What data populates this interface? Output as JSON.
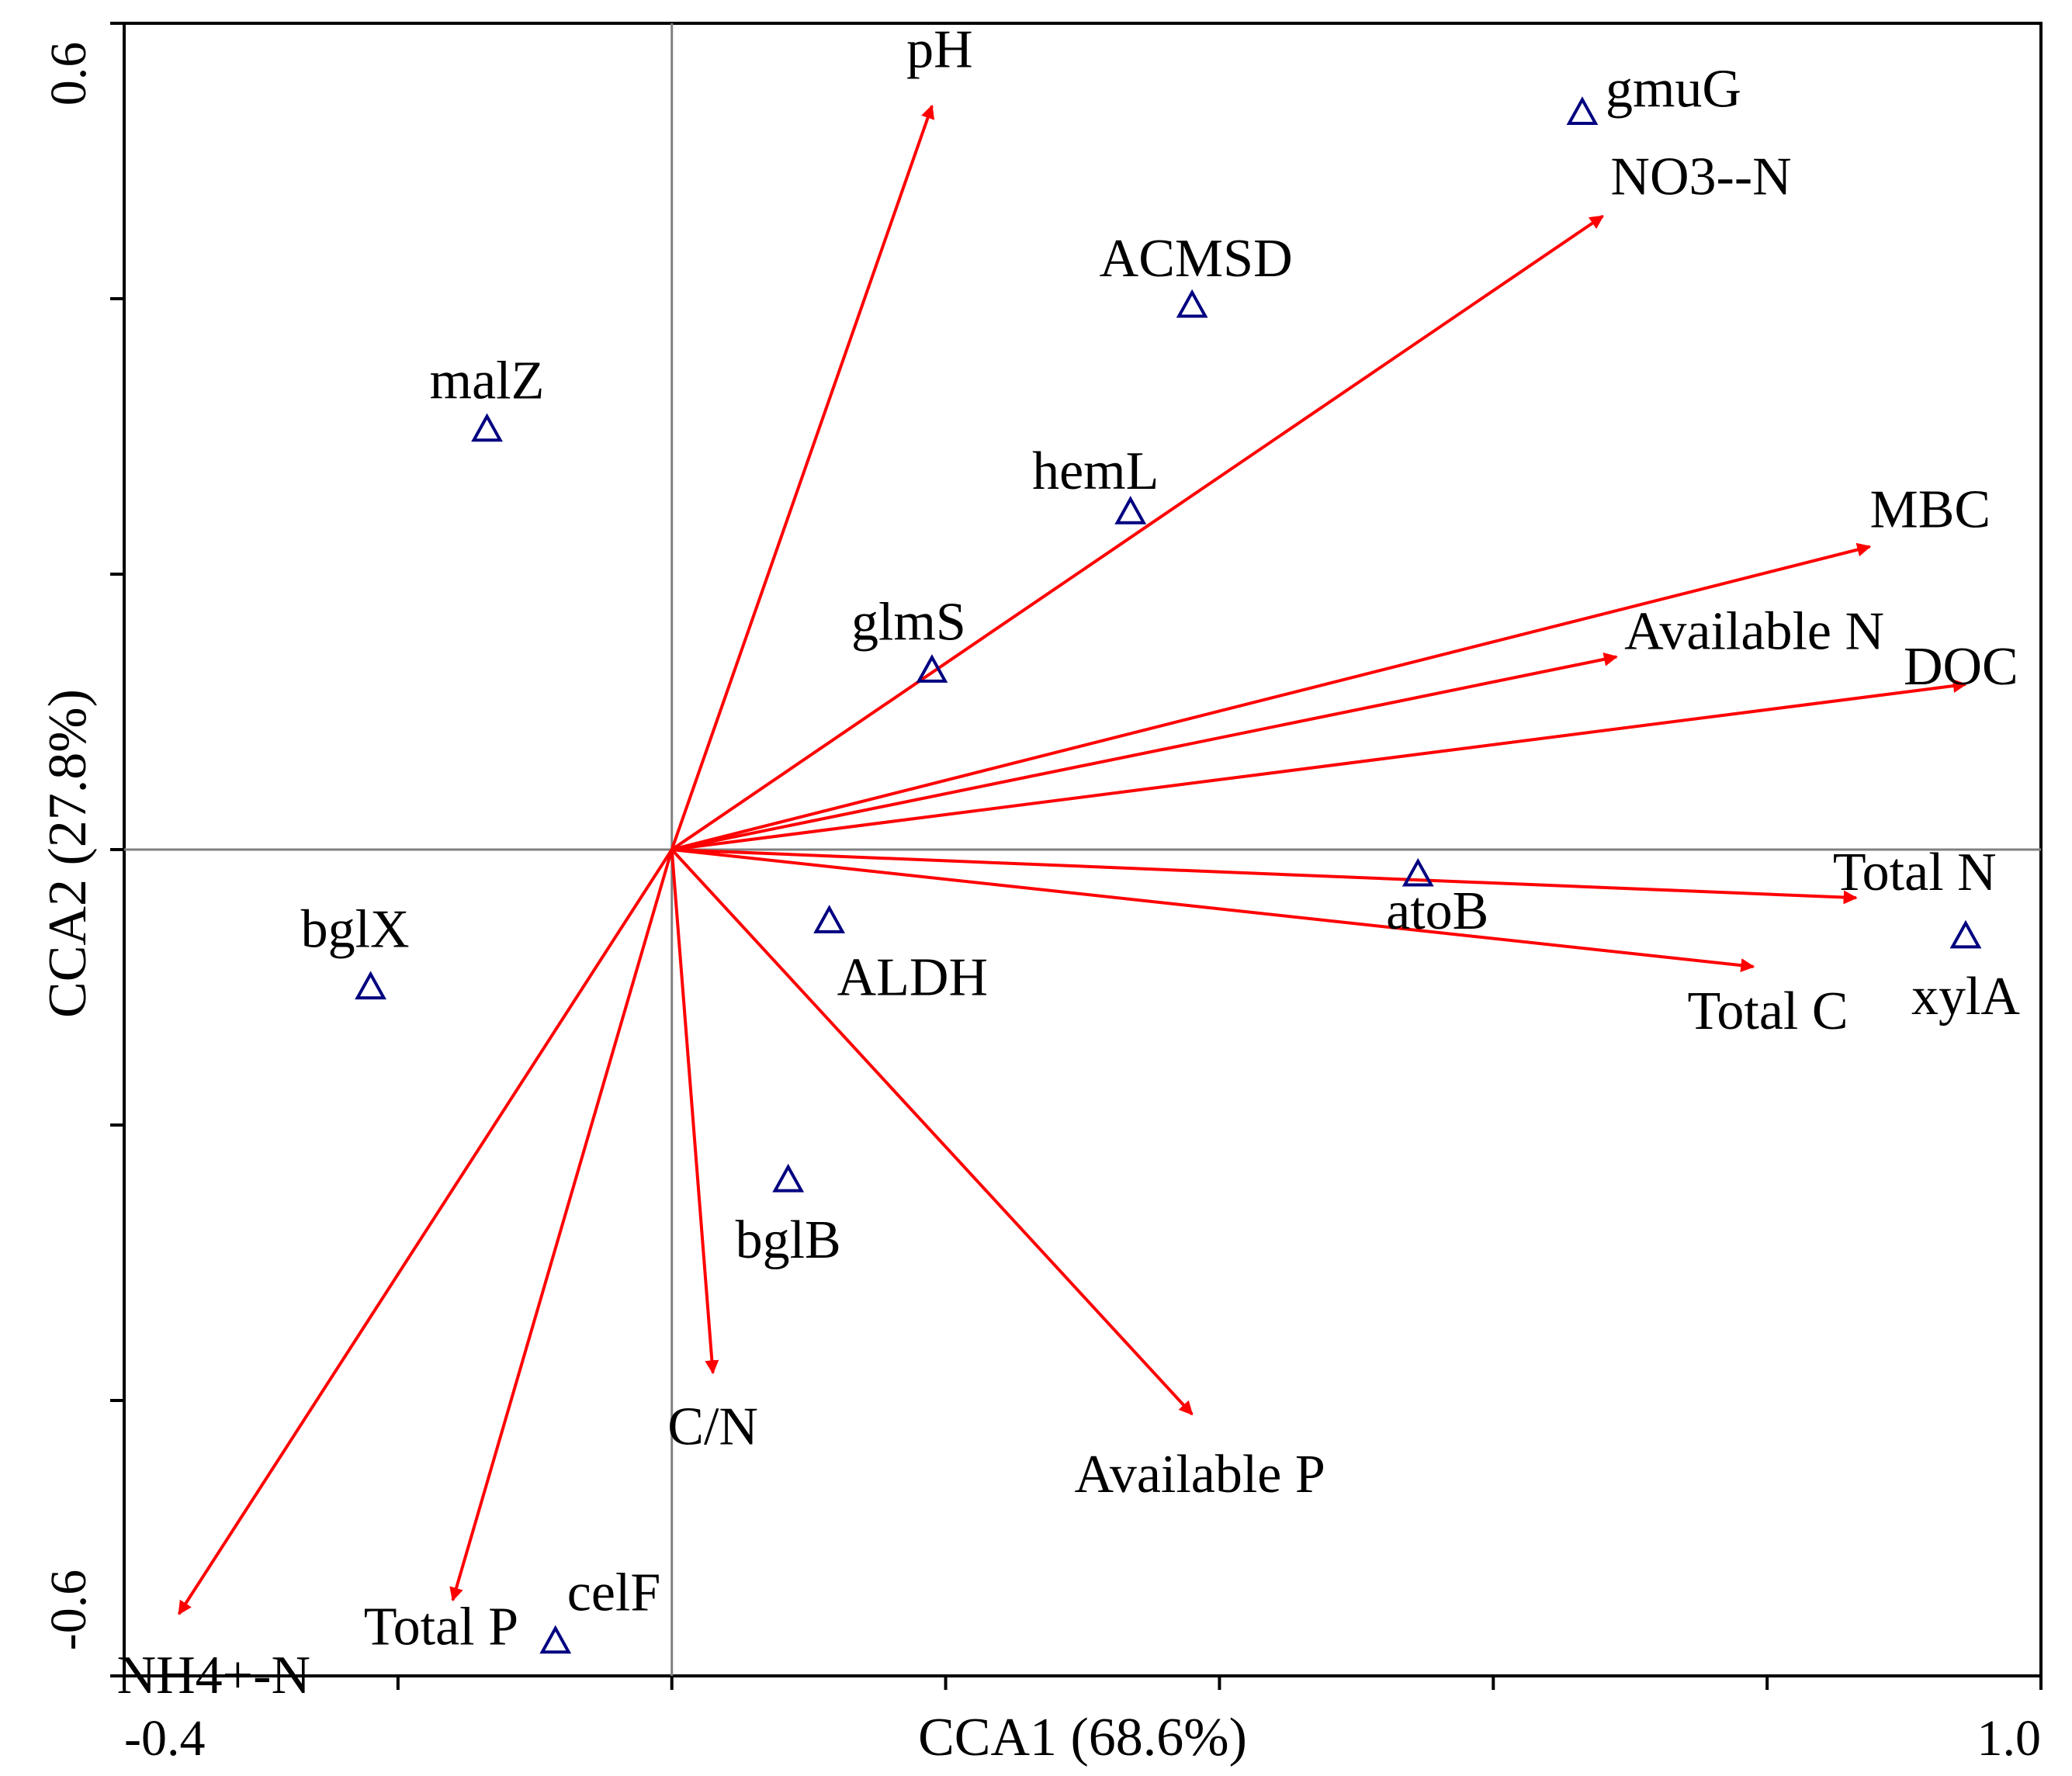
{
  "chart_data": {
    "type": "scatter",
    "subtype": "CCA biplot",
    "xlabel": "CCA1 (68.6%)",
    "ylabel": "CCA2 (27.8%)",
    "xlim": [
      -0.4,
      1.0
    ],
    "ylim": [
      -0.6,
      0.6
    ],
    "x_tick_labels": [
      {
        "value": -0.4,
        "label": "-0.4"
      },
      {
        "value": 1.0,
        "label": "1.0"
      }
    ],
    "y_tick_labels": [
      {
        "value": 0.6,
        "label": "0.6"
      },
      {
        "value": -0.6,
        "label": "-0.6"
      }
    ],
    "x_minor_ticks": [
      -0.2,
      0.0,
      0.2,
      0.4,
      0.6,
      0.8
    ],
    "y_minor_ticks": [
      -0.4,
      -0.2,
      0.0,
      0.2,
      0.4
    ],
    "colors": {
      "arrow": "#ff0000",
      "species": "#000080",
      "axes": "#000000",
      "zero_lines": "#808080"
    },
    "env_vectors": [
      {
        "name": "pH",
        "label": "pH",
        "x": 0.19,
        "y": 0.54
      },
      {
        "name": "NO3--N",
        "label": "NO3--N",
        "x": 0.68,
        "y": 0.46
      },
      {
        "name": "MBC",
        "label": "MBC",
        "x": 0.875,
        "y": 0.22
      },
      {
        "name": "Available N",
        "label": "Available N",
        "x": 0.69,
        "y": 0.14
      },
      {
        "name": "DOC",
        "label": "DOC",
        "x": 0.945,
        "y": 0.12
      },
      {
        "name": "Total N",
        "label": "Total N",
        "x": 0.865,
        "y": -0.035
      },
      {
        "name": "Total C",
        "label": "Total C",
        "x": 0.79,
        "y": -0.085
      },
      {
        "name": "Available P",
        "label": "Available P",
        "x": 0.38,
        "y": -0.41
      },
      {
        "name": "C/N",
        "label": "C/N",
        "x": 0.03,
        "y": -0.38
      },
      {
        "name": "Total P",
        "label": "Total P",
        "x": -0.16,
        "y": -0.545
      },
      {
        "name": "NH4+-N",
        "label": "NH4+-N",
        "x": -0.36,
        "y": -0.555
      }
    ],
    "species": [
      {
        "name": "gmuG",
        "label": "gmuG",
        "x": 0.665,
        "y": 0.535
      },
      {
        "name": "ACMSD",
        "label": "ACMSD",
        "x": 0.38,
        "y": 0.395
      },
      {
        "name": "malZ",
        "label": "malZ",
        "x": -0.135,
        "y": 0.305
      },
      {
        "name": "hemL",
        "label": "hemL",
        "x": 0.335,
        "y": 0.245
      },
      {
        "name": "glmS",
        "label": "glmS",
        "x": 0.19,
        "y": 0.13
      },
      {
        "name": "atoB",
        "label": "atoB",
        "x": 0.545,
        "y": -0.018
      },
      {
        "name": "ALDH",
        "label": "ALDH",
        "x": 0.115,
        "y": -0.052
      },
      {
        "name": "xylA",
        "label": "xylA",
        "x": 0.945,
        "y": -0.063
      },
      {
        "name": "bglX",
        "label": "bglX",
        "x": -0.22,
        "y": -0.1
      },
      {
        "name": "bglB",
        "label": "bglB",
        "x": 0.085,
        "y": -0.24
      },
      {
        "name": "celF",
        "label": "celF",
        "x": -0.085,
        "y": -0.575
      }
    ]
  }
}
